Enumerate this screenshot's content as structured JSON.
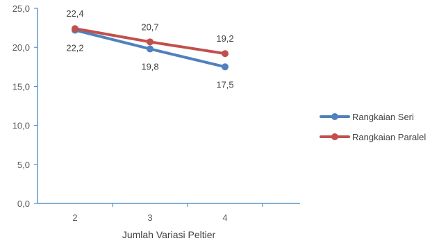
{
  "chart_data": {
    "type": "line",
    "title": "",
    "xlabel": "Jumlah Variasi Peltier",
    "ylabel": "",
    "categories": [
      "2",
      "3",
      "4"
    ],
    "ylim": [
      0,
      25
    ],
    "yticks": [
      "0,0",
      "5,0",
      "10,0",
      "15,0",
      "20,0",
      "25,0"
    ],
    "grid": false,
    "legend_position": "right",
    "series": [
      {
        "name": "Rangkaian Seri",
        "color": "#4f81bd",
        "values": [
          22.2,
          19.8,
          17.5
        ],
        "labels": [
          "22,2",
          "19,8",
          "17,5"
        ],
        "label_side": "below"
      },
      {
        "name": "Rangkaian Paralel",
        "color": "#c0504d",
        "values": [
          22.4,
          20.7,
          19.2
        ],
        "labels": [
          "22,4",
          "20,7",
          "19,2"
        ],
        "label_side": "above"
      }
    ]
  }
}
